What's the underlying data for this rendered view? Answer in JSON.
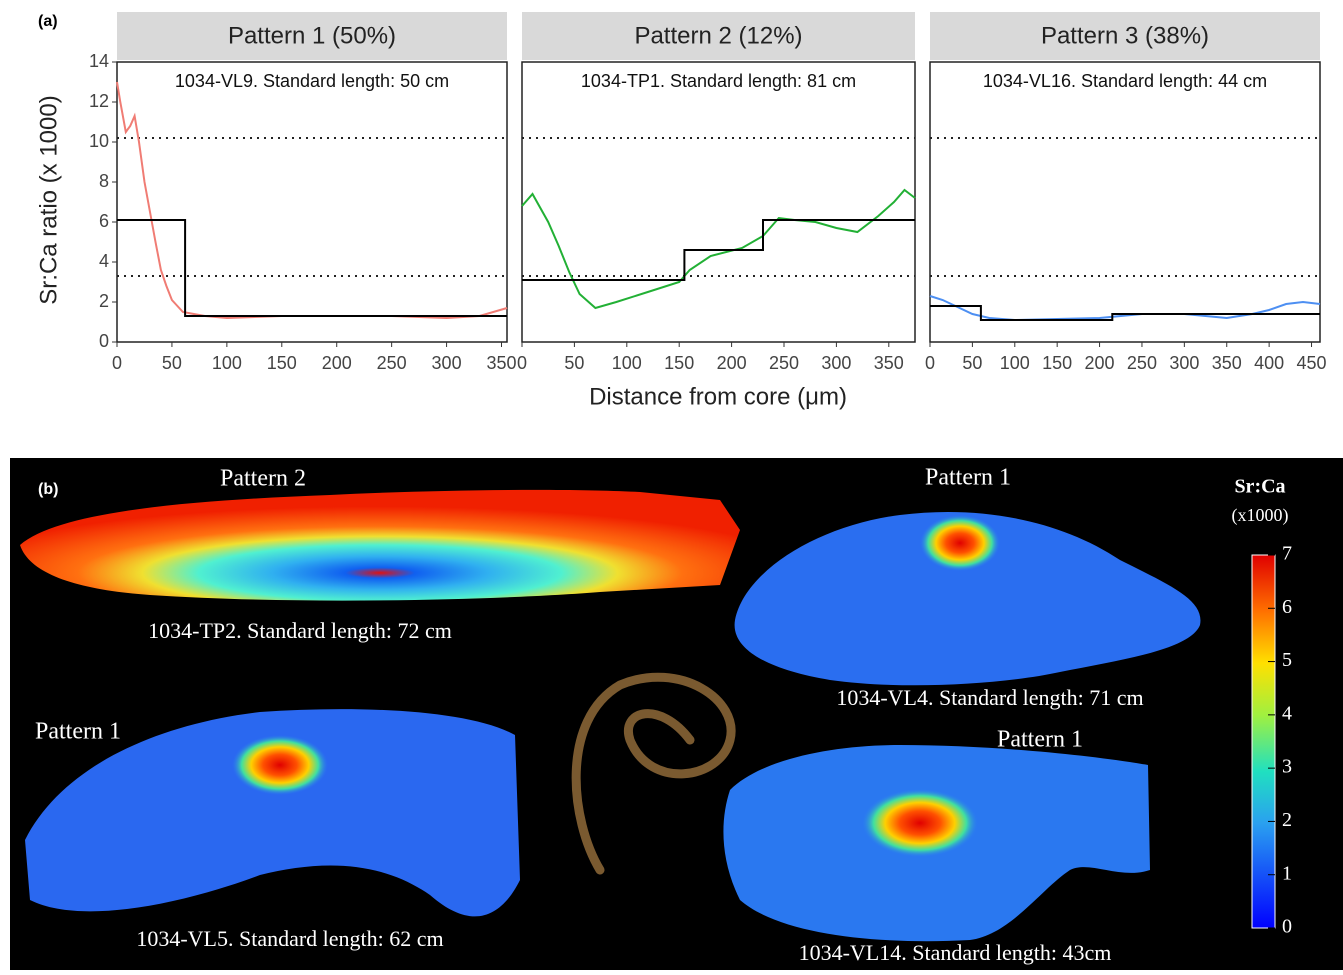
{
  "panel_a": {
    "label": "(a)",
    "y_label": "Sr:Ca ratio (x 1000)",
    "x_label": "Distance from core (μm)"
  },
  "chart_data": [
    {
      "type": "line",
      "title": "Pattern 1 (50%)",
      "annotation": "1034-VL9. Standard length: 50 cm",
      "xlim": [
        0,
        355
      ],
      "ylim": [
        0,
        14
      ],
      "xticks": [
        0,
        50,
        100,
        150,
        200,
        250,
        300,
        350
      ],
      "yticks": [
        0,
        2,
        4,
        6,
        8,
        10,
        12,
        14
      ],
      "reference_lines": [
        10.2,
        3.3
      ],
      "series": [
        {
          "color": "#f07c74",
          "x": [
            0,
            3,
            8,
            12,
            16,
            20,
            25,
            30,
            35,
            40,
            45,
            50,
            55,
            60,
            70,
            80,
            100,
            150,
            200,
            250,
            300,
            330,
            355
          ],
          "values": [
            13,
            12,
            10.5,
            10.8,
            11.3,
            10,
            8,
            6.5,
            5,
            3.6,
            2.8,
            2.1,
            1.8,
            1.5,
            1.4,
            1.3,
            1.2,
            1.3,
            1.3,
            1.3,
            1.2,
            1.3,
            1.7
          ]
        },
        {
          "color": "#000000",
          "x": [
            0,
            62,
            62,
            355
          ],
          "values": [
            6.1,
            6.1,
            1.3,
            1.3
          ]
        }
      ]
    },
    {
      "type": "line",
      "title": "Pattern 2 (12%)",
      "annotation": "1034-TP1. Standard length: 81 cm",
      "xlim": [
        0,
        375
      ],
      "ylim": [
        0,
        14
      ],
      "xticks": [
        0,
        50,
        100,
        150,
        200,
        250,
        300,
        350
      ],
      "reference_lines": [
        10.2,
        3.3
      ],
      "series": [
        {
          "color": "#22b035",
          "x": [
            0,
            10,
            25,
            35,
            45,
            55,
            70,
            90,
            120,
            150,
            160,
            180,
            210,
            230,
            245,
            260,
            280,
            300,
            320,
            340,
            355,
            365,
            375
          ],
          "values": [
            6.8,
            7.4,
            6,
            4.8,
            3.5,
            2.4,
            1.7,
            2,
            2.5,
            3,
            3.6,
            4.3,
            4.7,
            5.3,
            6.2,
            6.1,
            6,
            5.7,
            5.5,
            6.3,
            7,
            7.6,
            7.2
          ]
        },
        {
          "color": "#000000",
          "x": [
            0,
            155,
            155,
            230,
            230,
            375
          ],
          "values": [
            3.1,
            3.1,
            4.6,
            4.6,
            6.1,
            6.1
          ]
        }
      ]
    },
    {
      "type": "line",
      "title": "Pattern 3 (38%)",
      "annotation": "1034-VL16. Standard length: 44 cm",
      "xlim": [
        0,
        460
      ],
      "ylim": [
        0,
        14
      ],
      "xticks": [
        0,
        50,
        100,
        150,
        200,
        250,
        300,
        350,
        400,
        450
      ],
      "reference_lines": [
        10.2,
        3.3
      ],
      "series": [
        {
          "color": "#4d8ff2",
          "x": [
            0,
            15,
            30,
            50,
            70,
            100,
            150,
            200,
            250,
            300,
            350,
            380,
            400,
            420,
            440,
            460
          ],
          "values": [
            2.3,
            2.1,
            1.8,
            1.4,
            1.2,
            1.1,
            1.15,
            1.2,
            1.4,
            1.4,
            1.2,
            1.4,
            1.6,
            1.9,
            2,
            1.9
          ]
        },
        {
          "color": "#000000",
          "x": [
            0,
            60,
            60,
            215,
            215,
            460
          ],
          "values": [
            1.8,
            1.8,
            1.1,
            1.1,
            1.4,
            1.4
          ]
        }
      ]
    }
  ],
  "panel_b": {
    "label": "(b)",
    "maps": [
      {
        "pattern": "Pattern 2",
        "caption": "1034-TP2.  Standard length: 72 cm"
      },
      {
        "pattern": "Pattern 1",
        "caption": "1034-VL4.  Standard length: 71 cm"
      },
      {
        "pattern": "Pattern 1",
        "caption": "1034-VL5.  Standard length: 62 cm"
      },
      {
        "pattern": "Pattern 1",
        "caption": "1034-VL14.  Standard length:  43cm"
      }
    ],
    "colorbar": {
      "title": "Sr:Ca",
      "subtitle": "(x1000)",
      "ticks": [
        0,
        1,
        2,
        3,
        4,
        5,
        6,
        7
      ]
    }
  }
}
